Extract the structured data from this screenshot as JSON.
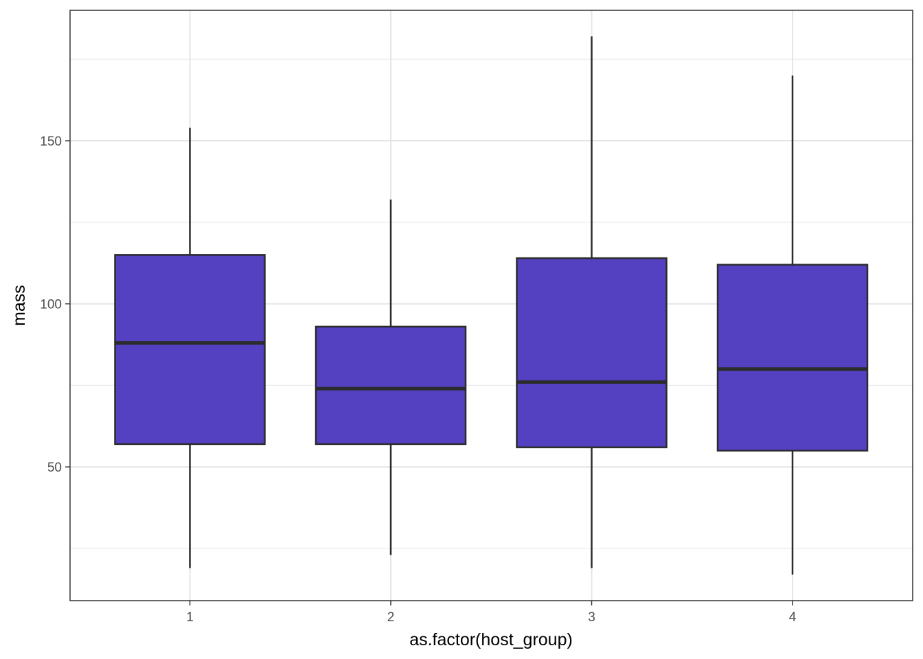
{
  "chart_data": {
    "type": "boxplot",
    "xlabel": "as.factor(host_group)",
    "ylabel": "mass",
    "ylim": [
      9,
      190
    ],
    "y_ticks": [
      50,
      100,
      150
    ],
    "y_tick_labels": [
      "50",
      "100",
      "150"
    ],
    "y_minor_ticks": [
      25,
      75,
      125,
      175
    ],
    "categories": [
      "1",
      "2",
      "3",
      "4"
    ],
    "boxes": [
      {
        "category": "1",
        "whisker_low": 19,
        "q1": 57,
        "median": 88,
        "q3": 115,
        "whisker_high": 154
      },
      {
        "category": "2",
        "whisker_low": 23,
        "q1": 57,
        "median": 74,
        "q3": 93,
        "whisker_high": 132
      },
      {
        "category": "3",
        "whisker_low": 19,
        "q1": 56,
        "median": 76,
        "q3": 114,
        "whisker_high": 182
      },
      {
        "category": "4",
        "whisker_low": 17,
        "q1": 55,
        "median": 80,
        "q3": 112,
        "whisker_high": 170
      }
    ],
    "fill_color": "#5441c1",
    "line_color": "#2b2b2b",
    "grid": true,
    "legend": "none"
  }
}
